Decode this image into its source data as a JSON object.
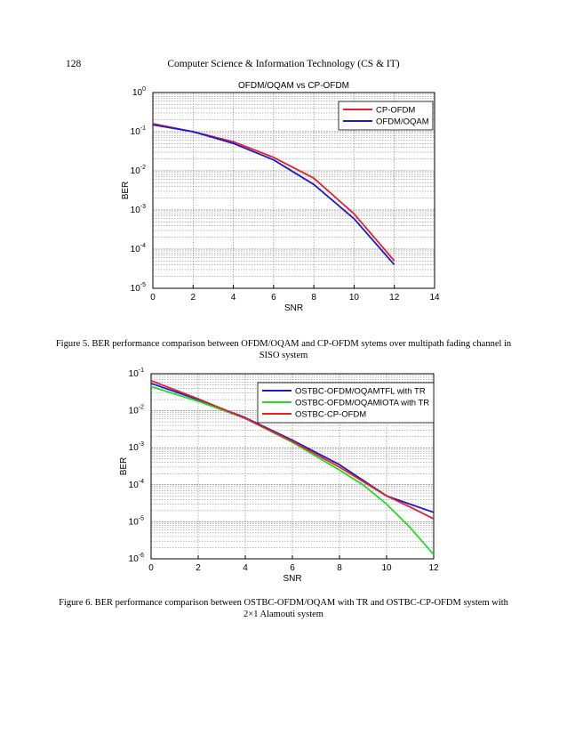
{
  "header": {
    "page_number": "128",
    "running_head": "Computer Science & Information Technology (CS & IT)"
  },
  "captions": {
    "figure5": "Figure 5. BER performance comparison between OFDM/OQAM and CP-OFDM sytems over multipath fading channel in SISO system",
    "figure6": "Figure 6. BER performance comparison between OSTBC-OFDM/OQAM with TR and OSTBC-CP-OFDM system with 2×1 Alamouti system"
  },
  "chart_data": [
    {
      "type": "line",
      "title": "OFDM/OQAM vs CP-OFDM",
      "xlabel": "SNR",
      "ylabel": "BER",
      "xlim": [
        0,
        14
      ],
      "ylim_exp": [
        -5,
        0
      ],
      "y_scale": "log",
      "grid": true,
      "legend_position": "top-right",
      "x_ticks": [
        "0",
        "2",
        "4",
        "6",
        "8",
        "10",
        "12",
        "14"
      ],
      "y_ticks": [
        {
          "base": "10",
          "exp": "0"
        },
        {
          "base": "10",
          "exp": "-1"
        },
        {
          "base": "10",
          "exp": "-2"
        },
        {
          "base": "10",
          "exp": "-3"
        },
        {
          "base": "10",
          "exp": "-4"
        },
        {
          "base": "10",
          "exp": "-5"
        }
      ],
      "series": [
        {
          "name": "CP-OFDM",
          "color": "#e8202a",
          "x": [
            0,
            2,
            4,
            6,
            8,
            10,
            12
          ],
          "y": [
            0.16,
            0.1,
            0.055,
            0.022,
            0.0065,
            0.0008,
            5e-05
          ]
        },
        {
          "name": "OFDM/OQAM",
          "color": "#1a1ad0",
          "x": [
            0,
            2,
            4,
            6,
            8,
            10,
            12
          ],
          "y": [
            0.15,
            0.1,
            0.05,
            0.019,
            0.0045,
            0.0006,
            4e-05
          ]
        }
      ]
    },
    {
      "type": "line",
      "title": "",
      "xlabel": "SNR",
      "ylabel": "BER",
      "xlim": [
        0,
        12
      ],
      "ylim_exp": [
        -6,
        -1
      ],
      "y_scale": "log",
      "grid": true,
      "legend_position": "top-right",
      "x_ticks": [
        "0",
        "2",
        "4",
        "6",
        "8",
        "10",
        "12"
      ],
      "y_ticks": [
        {
          "base": "10",
          "exp": "-1"
        },
        {
          "base": "10",
          "exp": "-2"
        },
        {
          "base": "10",
          "exp": "-3"
        },
        {
          "base": "10",
          "exp": "-4"
        },
        {
          "base": "10",
          "exp": "-5"
        },
        {
          "base": "10",
          "exp": "-6"
        }
      ],
      "series": [
        {
          "name": "OSTBC-OFDM/OQAMTFL with TR",
          "color": "#1a1ad0",
          "x": [
            0,
            2,
            4,
            6,
            8,
            10,
            11,
            12
          ],
          "y": [
            0.055,
            0.02,
            0.0065,
            0.0016,
            0.00035,
            5e-05,
            3e-05,
            1.8e-05
          ]
        },
        {
          "name": "OSTBC-OFDM/OQAMIOTA with TR",
          "color": "#22dd22",
          "x": [
            0,
            2,
            4,
            6,
            8,
            9,
            10,
            11,
            12
          ],
          "y": [
            0.045,
            0.018,
            0.0062,
            0.0014,
            0.00025,
            0.0001,
            3e-05,
            7e-06,
            1.3e-06
          ]
        },
        {
          "name": "OSTBC-CP-OFDM",
          "color": "#e8202a",
          "x": [
            0,
            2,
            4,
            6,
            8,
            10,
            11,
            12
          ],
          "y": [
            0.065,
            0.021,
            0.0062,
            0.0015,
            0.0003,
            5e-05,
            2.5e-05,
            1.2e-05
          ]
        }
      ]
    }
  ]
}
